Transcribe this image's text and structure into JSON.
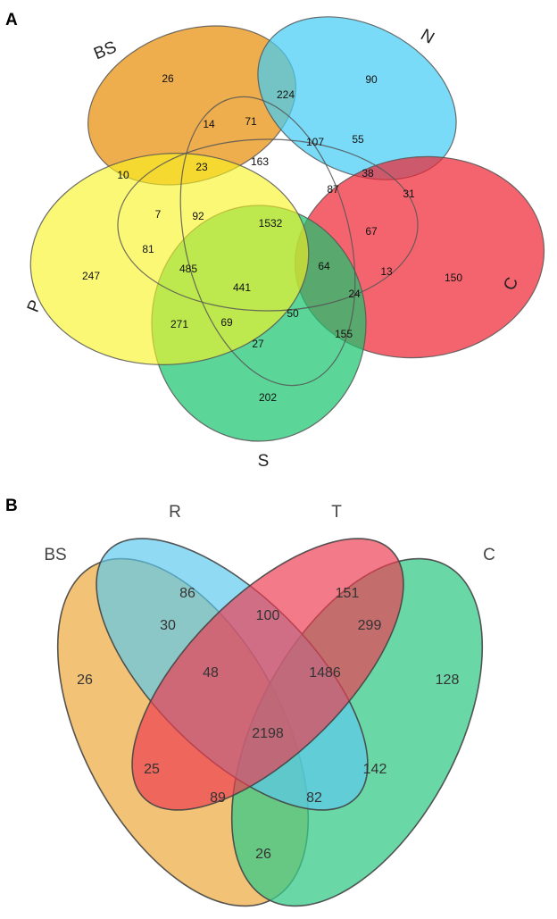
{
  "panel_a": {
    "letter": "A",
    "sets": [
      {
        "name": "BS",
        "color": "#EBA02E"
      },
      {
        "name": "N",
        "color": "#45CDF4"
      },
      {
        "name": "C",
        "color": "#EF2231"
      },
      {
        "name": "S",
        "color": "#17C56C"
      },
      {
        "name": "P",
        "color": "#F8F320"
      }
    ],
    "counts": [
      "26",
      "90",
      "150",
      "202",
      "247",
      "224",
      "14",
      "71",
      "107",
      "55",
      "10",
      "23",
      "163",
      "38",
      "31",
      "7",
      "92",
      "1532",
      "87",
      "67",
      "81",
      "485",
      "441",
      "64",
      "13",
      "271",
      "69",
      "50",
      "24",
      "155",
      "27"
    ]
  },
  "panel_b": {
    "letter": "B",
    "sets": [
      {
        "name": "BS",
        "color": "#F0B85E"
      },
      {
        "name": "R",
        "color": "#5CC8EE"
      },
      {
        "name": "T",
        "color": "#EE3B4F"
      },
      {
        "name": "C",
        "color": "#38C98A"
      }
    ],
    "counts": [
      "86",
      "151",
      "26",
      "30",
      "100",
      "299",
      "128",
      "48",
      "1486",
      "2198",
      "25",
      "142",
      "89",
      "82",
      "26"
    ]
  }
}
